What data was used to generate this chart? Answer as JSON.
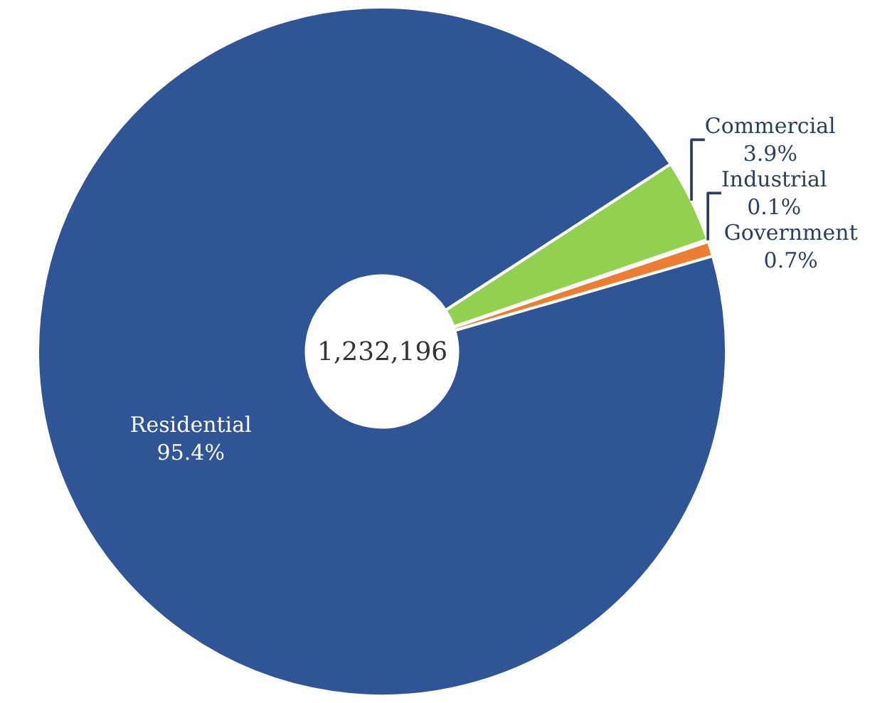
{
  "chart_data": {
    "type": "donut",
    "categories": [
      "Commercial",
      "Industrial",
      "Government",
      "Residential"
    ],
    "values": [
      3.9,
      0.1,
      0.7,
      95.4
    ],
    "value_labels": [
      "3.9%",
      "0.1%",
      "0.7%",
      "95.4%"
    ],
    "colors": [
      "#92d050",
      "#a5a5a5",
      "#ed7d31",
      "#2f5597"
    ],
    "annotations": [
      "1,232,196"
    ],
    "legend": false
  }
}
